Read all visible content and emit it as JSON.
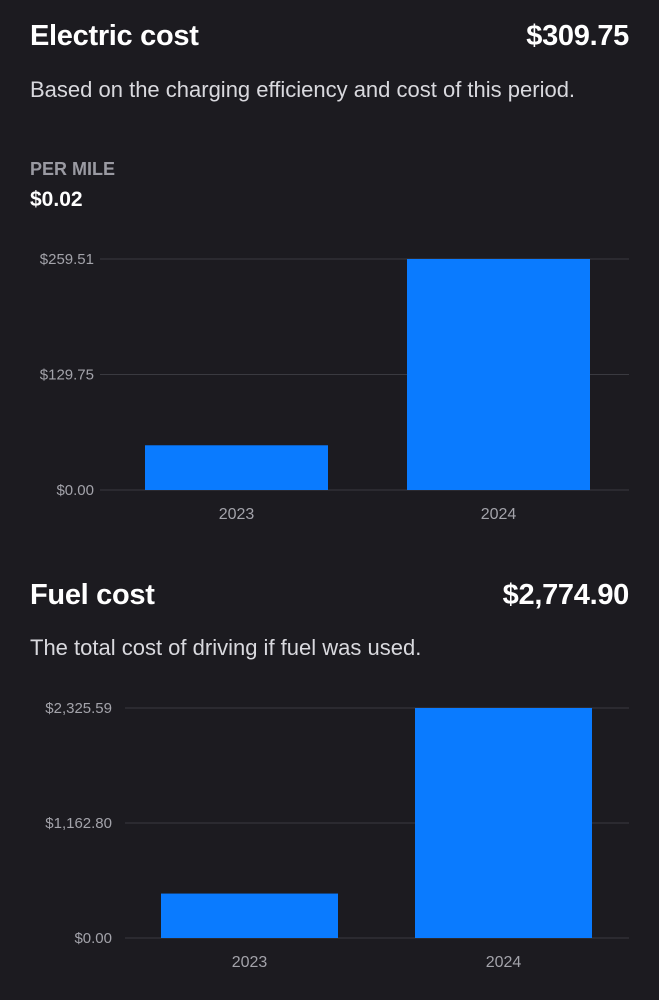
{
  "electric": {
    "title": "Electric cost",
    "total": "$309.75",
    "description": "Based on the charging efficiency and cost of this period.",
    "per_mile_label": "PER MILE",
    "per_mile_value": "$0.02"
  },
  "fuel": {
    "title": "Fuel cost",
    "total": "$2,774.90",
    "description": "The total cost of driving if fuel was used."
  },
  "colors": {
    "bar": "#0a7bff",
    "grid": "#3a3a40",
    "tick_text": "#a3a3aa"
  },
  "chart_data": [
    {
      "type": "bar",
      "id": "electric",
      "categories": [
        "2023",
        "2024"
      ],
      "values": [
        50.25,
        259.51
      ],
      "ylim": [
        0,
        259.51
      ],
      "yticks": [
        0,
        129.75,
        259.51
      ],
      "ytick_labels": [
        "$0.00",
        "$129.75",
        "$259.51"
      ],
      "grid": true
    },
    {
      "type": "bar",
      "id": "fuel",
      "categories": [
        "2023",
        "2024"
      ],
      "values": [
        449.31,
        2325.59
      ],
      "ylim": [
        0,
        2325.59
      ],
      "yticks": [
        0,
        1162.8,
        2325.59
      ],
      "ytick_labels": [
        "$0.00",
        "$1,162.80",
        "$2,325.59"
      ],
      "grid": true
    }
  ]
}
